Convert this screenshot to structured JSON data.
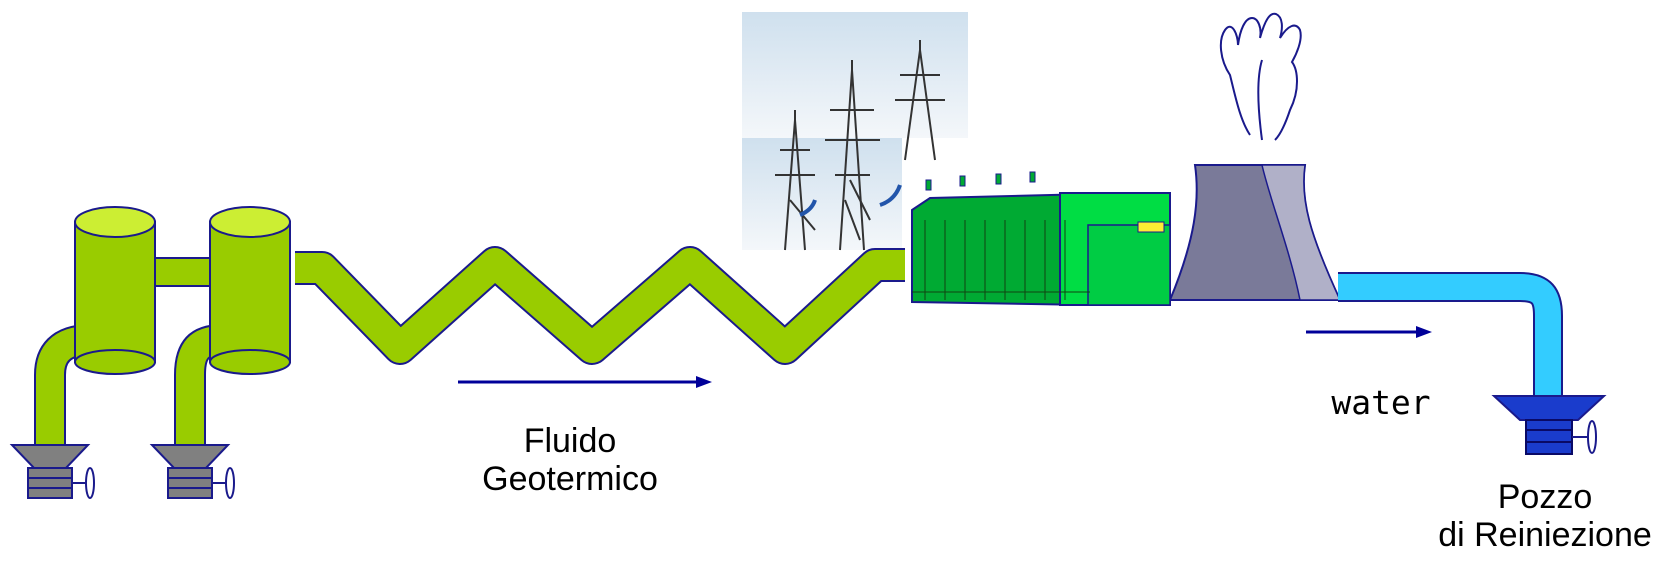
{
  "labels": {
    "fluid_line1": "Fluido",
    "fluid_line2": "Geotermico",
    "water": "water",
    "well_line1": "Pozzo",
    "well_line2": "di Reiniezione"
  },
  "colors": {
    "pipe_green": "#99cc00",
    "pipe_outline": "#1a1a8c",
    "plant_green": "#00aa33",
    "plant_light": "#00dd44",
    "tower_gray": "#7a7a99",
    "tower_light": "#b0b0c8",
    "water_blue": "#33ccff",
    "valve_gray": "#808080",
    "valve_blue": "#1a3ccc",
    "arrow": "#000099"
  },
  "icons": [
    "separator-tank-icon",
    "wellhead-valve-icon",
    "power-pylon-icon",
    "power-plant-icon",
    "cooling-tower-icon",
    "steam-plume-icon",
    "injection-valve-icon"
  ]
}
